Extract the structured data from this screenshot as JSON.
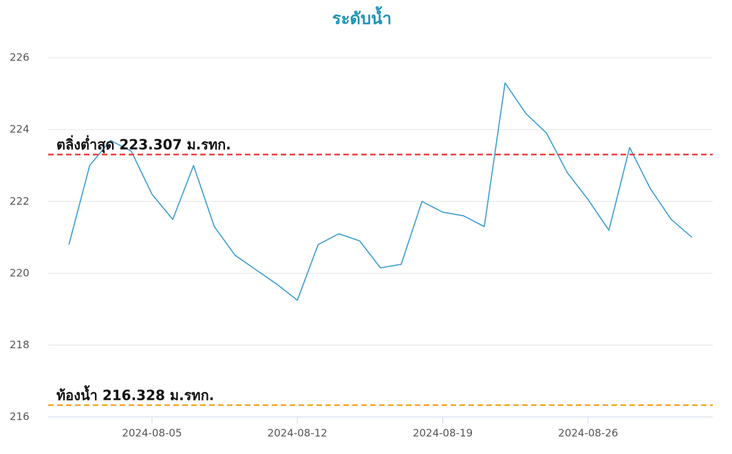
{
  "chart_data": {
    "type": "line",
    "title": "ระดับน้ำ",
    "x": [
      "2024-08-01",
      "2024-08-02",
      "2024-08-03",
      "2024-08-04",
      "2024-08-05",
      "2024-08-06",
      "2024-08-07",
      "2024-08-08",
      "2024-08-09",
      "2024-08-10",
      "2024-08-11",
      "2024-08-12",
      "2024-08-13",
      "2024-08-14",
      "2024-08-15",
      "2024-08-16",
      "2024-08-17",
      "2024-08-18",
      "2024-08-19",
      "2024-08-20",
      "2024-08-21",
      "2024-08-22",
      "2024-08-23",
      "2024-08-24",
      "2024-08-25",
      "2024-08-26",
      "2024-08-27",
      "2024-08-28",
      "2024-08-29",
      "2024-08-30",
      "2024-08-31"
    ],
    "series": [
      {
        "color": "#3a9bd0",
        "values": [
          220.8,
          223.0,
          223.7,
          223.4,
          222.2,
          221.5,
          223.0,
          221.3,
          220.5,
          220.1,
          219.7,
          219.25,
          220.8,
          221.1,
          220.9,
          220.15,
          220.25,
          222.0,
          221.7,
          221.6,
          221.3,
          225.3,
          224.45,
          223.9,
          222.8,
          222.05,
          221.2,
          223.5,
          222.35,
          221.5,
          221.0
        ]
      }
    ],
    "xlim": [
      "2024-07-31",
      "2024-09-01"
    ],
    "xticks": [
      "2024-08-05",
      "2024-08-12",
      "2024-08-19",
      "2024-08-26"
    ],
    "ylim": [
      216,
      226.5
    ],
    "yticks": [
      216,
      218,
      220,
      222,
      224,
      226
    ],
    "grid": true,
    "reference_lines": [
      {
        "value": 223.307,
        "label": "ตลิ่งต่ำสุด 223.307 ม.รทก.",
        "color": "#f03c3c"
      },
      {
        "value": 216.328,
        "label": "ท้องน้ำ 216.328 ม.รทก.",
        "color": "#f5a623"
      }
    ]
  }
}
